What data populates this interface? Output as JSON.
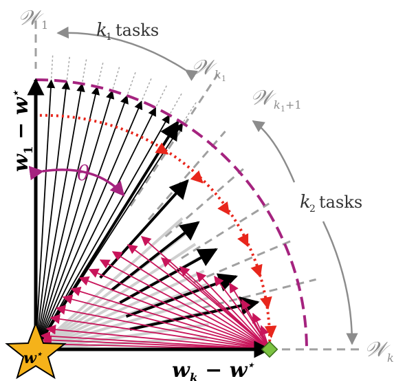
{
  "labels": {
    "W": "𝒲",
    "sub_1": "1",
    "sub_k1": "k",
    "sub_k1_small": "1",
    "sub_k1p1": "k",
    "sub_k1p1_small": "1",
    "sub_k1p1_plus": "+1",
    "sub_k": "k",
    "k1_tasks_k": "k",
    "k1_tasks_sub": "1",
    "k1_tasks_word": "tasks",
    "k2_tasks_k": "k",
    "k2_tasks_sub": "2",
    "k2_tasks_word": "tasks",
    "theta": "θ",
    "axis_x_w": "w",
    "axis_x_sub": "k",
    "axis_x_rest": "− w",
    "axis_x_star": "⋆",
    "axis_y_w": "w",
    "axis_y_sub": "1",
    "axis_y_rest": "− w",
    "axis_y_star": "⋆",
    "origin_w": "w",
    "origin_star": "⋆"
  },
  "colors": {
    "black": "#000000",
    "crimson": "#c8145a",
    "magenta": "#a5237f",
    "red": "#e8261c",
    "gray": "#8c8c8c",
    "lightgray": "#c8c8c8",
    "star_fill": "#f5b21a",
    "diamond_fill": "#7cc242"
  },
  "icons": {
    "origin": "star-icon",
    "endpoint": "diamond-icon"
  }
}
